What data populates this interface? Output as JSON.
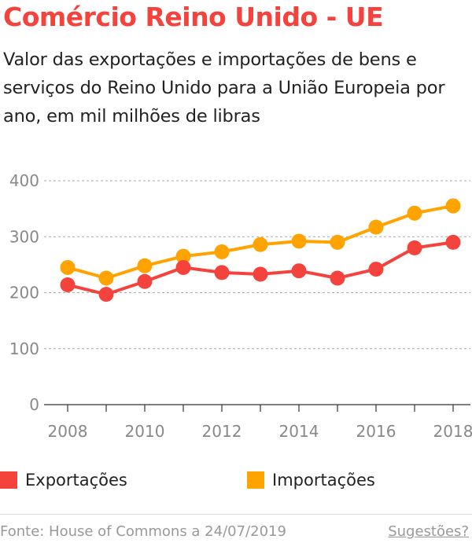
{
  "header": {
    "title": "Comércio Reino Unido - UE",
    "subtitle": "Valor das exportações e importações de bens e serviços do Reino Unido para a União Europeia por ano, em mil milhões de libras"
  },
  "chart_data": {
    "type": "line",
    "x": [
      2008,
      2009,
      2010,
      2011,
      2012,
      2013,
      2014,
      2015,
      2016,
      2017,
      2018
    ],
    "xticks": [
      "2008",
      "2010",
      "2012",
      "2014",
      "2016",
      "2018"
    ],
    "yticks": [
      "0",
      "100",
      "200",
      "300",
      "400"
    ],
    "ylim": [
      0,
      400
    ],
    "grid": true,
    "series": [
      {
        "name": "Exportações",
        "color": "#f4433c",
        "values": [
          214,
          197,
          220,
          245,
          236,
          233,
          239,
          226,
          242,
          280,
          290
        ]
      },
      {
        "name": "Importações",
        "color": "#ffa300",
        "values": [
          245,
          226,
          248,
          265,
          273,
          286,
          292,
          290,
          317,
          342,
          355
        ]
      }
    ],
    "legend_position": "bottom"
  },
  "footer": {
    "source": "Fonte: House of Commons a 24/07/2019",
    "suggestions": "Sugestões?"
  }
}
